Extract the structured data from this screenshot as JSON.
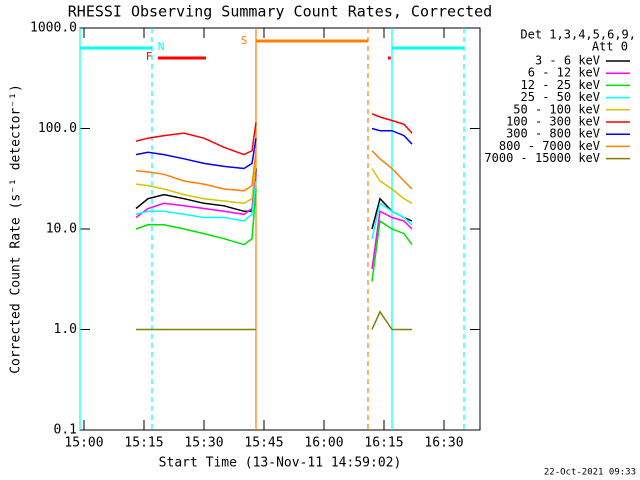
{
  "chart_data": {
    "type": "line",
    "title": "RHESSI Observing Summary Count Rates, Corrected",
    "x_label": "Start Time (13-Nov-11 14:59:02)",
    "y_label": "Corrected Count Rate (s⁻¹ detector⁻¹)",
    "legend_title": [
      "Det 1,3,4,5,6,9,",
      "Att 0"
    ],
    "footer": "22-Oct-2021 09:33",
    "log_y": true,
    "xlim": [
      -1,
      99
    ],
    "xticks": [
      {
        "value": 0,
        "label": "15:00"
      },
      {
        "value": 15,
        "label": "15:15"
      },
      {
        "value": 30,
        "label": "15:30"
      },
      {
        "value": 45,
        "label": "15:45"
      },
      {
        "value": 60,
        "label": "16:00"
      },
      {
        "value": 75,
        "label": "16:15"
      },
      {
        "value": 90,
        "label": "16:30"
      }
    ],
    "ylim": [
      0.1,
      1000
    ],
    "yticks": [
      0.1,
      {
        "value": 1,
        "label": "1.0"
      },
      {
        "value": 10,
        "label": "10.0"
      },
      {
        "value": 100,
        "label": "100.0"
      },
      {
        "value": 1000,
        "label": "1000.0"
      }
    ],
    "x": [
      13,
      16,
      20,
      25,
      30,
      35,
      40,
      42,
      43,
      57,
      72,
      74,
      77,
      80,
      82
    ],
    "series": [
      {
        "name": "3 - 6 keV",
        "color": "#000000",
        "values": [
          16,
          20,
          22,
          20,
          18,
          17,
          15,
          15,
          40,
          null,
          10,
          20,
          15,
          13,
          12
        ]
      },
      {
        "name": "6 - 12 keV",
        "color": "#ff00ff",
        "values": [
          13,
          16,
          18,
          17,
          16,
          15,
          14,
          16,
          35,
          null,
          4,
          15,
          13,
          12,
          10
        ]
      },
      {
        "name": "12 - 25 keV",
        "color": "#00e000",
        "values": [
          10,
          11,
          11,
          10,
          9,
          8,
          7,
          8,
          25,
          null,
          3,
          12,
          10,
          9,
          7
        ]
      },
      {
        "name": "25 - 50 keV",
        "color": "#00ffff",
        "values": [
          14,
          15,
          15,
          14,
          13,
          13,
          12,
          14,
          30,
          null,
          8,
          18,
          15,
          13,
          11
        ]
      },
      {
        "name": "50 - 100 keV",
        "color": "#d4c400",
        "values": [
          28,
          27,
          25,
          22,
          20,
          19,
          18,
          20,
          45,
          null,
          40,
          30,
          25,
          20,
          18
        ]
      },
      {
        "name": "100 - 300 keV",
        "color": "#ff0000",
        "values": [
          75,
          80,
          85,
          90,
          80,
          65,
          55,
          60,
          115,
          null,
          140,
          130,
          120,
          110,
          90
        ]
      },
      {
        "name": "300 - 800 keV",
        "color": "#0000ff",
        "values": [
          55,
          58,
          55,
          50,
          45,
          42,
          40,
          45,
          80,
          null,
          100,
          95,
          95,
          85,
          70
        ]
      },
      {
        "name": "800 - 7000 keV",
        "color": "#ff8000",
        "values": [
          38,
          37,
          35,
          30,
          28,
          25,
          24,
          27,
          60,
          null,
          60,
          50,
          40,
          30,
          25
        ]
      },
      {
        "name": "7000 - 15000 keV",
        "color": "#808000",
        "values": [
          1,
          1,
          1,
          1,
          1,
          1,
          1,
          1,
          1,
          null,
          1,
          1.5,
          1,
          1,
          1
        ]
      }
    ],
    "flags": [
      {
        "label": "N",
        "color": "#00ffff",
        "intervals": [
          [
            -1,
            17
          ],
          [
            77,
            95
          ]
        ]
      },
      {
        "label": "F",
        "color": "#ff0000",
        "intervals": [
          [
            18.5,
            30.5
          ],
          [
            76,
            76.7
          ]
        ]
      },
      {
        "label": "S",
        "color": "#ff8000",
        "intervals": [
          [
            43,
            71
          ]
        ]
      }
    ]
  }
}
